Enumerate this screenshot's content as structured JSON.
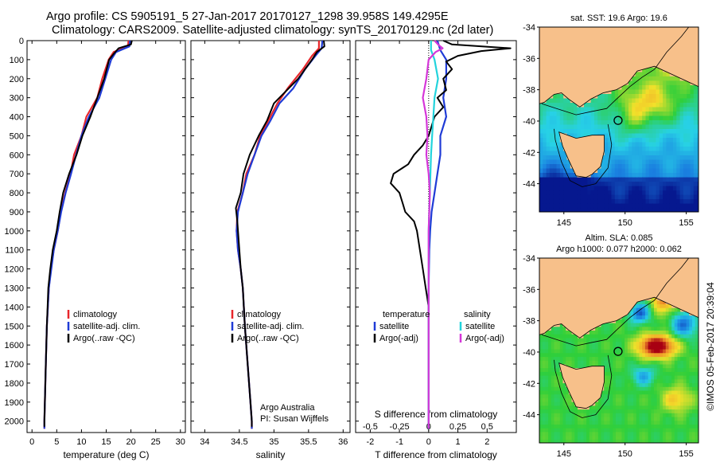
{
  "header": {
    "line1": "Argo profile: CS 5905191_5 27-Jan-2017 20170127_1298 39.958S 149.4295E",
    "line2": "Climatology: CARS2009. Satellite-adjusted climatology: synTS_20170129.nc (2d later)"
  },
  "chart_data": [
    {
      "type": "line",
      "panel": "temperature",
      "xlabel": "temperature (deg C)",
      "xlim": [
        -1,
        31
      ],
      "xticks": [
        0,
        5,
        10,
        15,
        20,
        25,
        30
      ],
      "ylim": [
        2060,
        0
      ],
      "yticks": [
        0,
        100,
        200,
        300,
        400,
        500,
        600,
        700,
        800,
        900,
        1000,
        1100,
        1200,
        1300,
        1400,
        1500,
        1600,
        1700,
        1800,
        1900,
        2000
      ],
      "legend": {
        "position": "lower-center",
        "entries": [
          "climatology",
          "satellite-adj. clim.",
          "Argo(..raw -QC)"
        ]
      },
      "series": [
        {
          "name": "climatology",
          "color": "#e8262b",
          "points": [
            [
              19.5,
              0
            ],
            [
              19.4,
              30
            ],
            [
              16.5,
              60
            ],
            [
              15.5,
              100
            ],
            [
              14.2,
              200
            ],
            [
              13.2,
              300
            ],
            [
              11.0,
              400
            ],
            [
              10.0,
              500
            ],
            [
              8.5,
              600
            ],
            [
              7.8,
              700
            ],
            [
              6.7,
              800
            ],
            [
              5.8,
              900
            ],
            [
              5.2,
              1000
            ],
            [
              4.4,
              1100
            ],
            [
              3.8,
              1200
            ],
            [
              3.4,
              1300
            ],
            [
              3.0,
              1500
            ],
            [
              2.8,
              1700
            ],
            [
              2.6,
              1900
            ],
            [
              2.5,
              2000
            ],
            [
              2.5,
              2040
            ]
          ]
        },
        {
          "name": "satellite-adj. clim.",
          "color": "#1f3bd6",
          "points": [
            [
              19.8,
              0
            ],
            [
              19.7,
              30
            ],
            [
              17.0,
              60
            ],
            [
              16.0,
              100
            ],
            [
              14.8,
              200
            ],
            [
              13.6,
              300
            ],
            [
              11.5,
              400
            ],
            [
              10.0,
              500
            ],
            [
              8.9,
              600
            ],
            [
              7.9,
              700
            ],
            [
              6.8,
              800
            ],
            [
              5.9,
              900
            ],
            [
              5.2,
              1000
            ],
            [
              4.4,
              1100
            ],
            [
              3.9,
              1200
            ],
            [
              3.4,
              1300
            ],
            [
              3.0,
              1500
            ],
            [
              2.8,
              1700
            ],
            [
              2.6,
              1900
            ],
            [
              2.5,
              2000
            ],
            [
              2.5,
              2040
            ]
          ]
        },
        {
          "name": "Argo(..raw -QC)",
          "color": "#000000",
          "points": [
            [
              20.2,
              0
            ],
            [
              20.0,
              20
            ],
            [
              17.5,
              40
            ],
            [
              16.5,
              70
            ],
            [
              15.6,
              100
            ],
            [
              14.6,
              200
            ],
            [
              13.2,
              300
            ],
            [
              11.8,
              400
            ],
            [
              10.2,
              500
            ],
            [
              9.0,
              600
            ],
            [
              7.5,
              700
            ],
            [
              6.3,
              800
            ],
            [
              5.6,
              900
            ],
            [
              5.0,
              1000
            ],
            [
              4.2,
              1100
            ],
            [
              3.7,
              1200
            ],
            [
              3.3,
              1300
            ],
            [
              3.0,
              1500
            ],
            [
              2.8,
              1700
            ],
            [
              2.6,
              1900
            ],
            [
              2.5,
              2000
            ],
            [
              2.5,
              2030
            ]
          ]
        }
      ]
    },
    {
      "type": "line",
      "panel": "salinity",
      "xlabel": "salinity",
      "xlim": [
        33.8,
        36.1
      ],
      "xticks": [
        34,
        34.5,
        35,
        35.5,
        36
      ],
      "ylim": [
        2060,
        0
      ],
      "legend": {
        "position": "lower-center",
        "entries": [
          "climatology",
          "satellite-adj. clim.",
          "Argo(..raw -QC)"
        ]
      },
      "annotation": [
        "Argo Australia",
        "PI: Susan Wijffels"
      ],
      "series": [
        {
          "name": "climatology",
          "color": "#e8262b",
          "points": [
            [
              35.65,
              0
            ],
            [
              35.65,
              40
            ],
            [
              35.55,
              80
            ],
            [
              35.42,
              150
            ],
            [
              35.2,
              250
            ],
            [
              35.05,
              330
            ],
            [
              34.92,
              420
            ],
            [
              34.8,
              500
            ],
            [
              34.72,
              600
            ],
            [
              34.6,
              700
            ],
            [
              34.55,
              800
            ],
            [
              34.47,
              900
            ],
            [
              34.46,
              1000
            ],
            [
              34.48,
              1100
            ],
            [
              34.52,
              1200
            ],
            [
              34.55,
              1300
            ],
            [
              34.58,
              1500
            ],
            [
              34.62,
              1700
            ],
            [
              34.66,
              1900
            ],
            [
              34.68,
              2000
            ],
            [
              34.68,
              2040
            ]
          ]
        },
        {
          "name": "satellite-adj. clim.",
          "color": "#1f3bd6",
          "points": [
            [
              35.7,
              0
            ],
            [
              35.69,
              40
            ],
            [
              35.6,
              80
            ],
            [
              35.45,
              150
            ],
            [
              35.28,
              250
            ],
            [
              35.08,
              330
            ],
            [
              34.95,
              420
            ],
            [
              34.82,
              500
            ],
            [
              34.72,
              600
            ],
            [
              34.62,
              700
            ],
            [
              34.55,
              800
            ],
            [
              34.48,
              900
            ],
            [
              34.46,
              1000
            ],
            [
              34.48,
              1100
            ],
            [
              34.52,
              1200
            ],
            [
              34.55,
              1300
            ],
            [
              34.58,
              1500
            ],
            [
              34.62,
              1700
            ],
            [
              34.66,
              1900
            ],
            [
              34.68,
              2000
            ],
            [
              34.68,
              2040
            ]
          ]
        },
        {
          "name": "Argo(..raw -QC)",
          "color": "#000000",
          "points": [
            [
              35.72,
              0
            ],
            [
              35.73,
              30
            ],
            [
              35.62,
              60
            ],
            [
              35.55,
              100
            ],
            [
              35.35,
              200
            ],
            [
              35.0,
              330
            ],
            [
              34.9,
              420
            ],
            [
              34.78,
              500
            ],
            [
              34.65,
              600
            ],
            [
              34.56,
              700
            ],
            [
              34.52,
              800
            ],
            [
              34.45,
              880
            ],
            [
              34.47,
              950
            ],
            [
              34.49,
              1050
            ],
            [
              34.52,
              1200
            ],
            [
              34.55,
              1300
            ],
            [
              34.58,
              1500
            ],
            [
              34.62,
              1700
            ],
            [
              34.66,
              1900
            ],
            [
              34.68,
              2000
            ],
            [
              34.68,
              2030
            ]
          ]
        }
      ]
    },
    {
      "type": "line",
      "panel": "differences",
      "xlabel": "T difference from climatology",
      "xlabel_top": "S difference from climatology",
      "xlim": [
        -2.5,
        3.0
      ],
      "xticks": [
        -2,
        -1,
        0,
        1,
        2
      ],
      "s_xticks": [
        -0.5,
        -0.25,
        0,
        0.25,
        0.5
      ],
      "s_per_t": 4,
      "ylim": [
        2060,
        0
      ],
      "legend": {
        "position": "lower-center",
        "titles": [
          "temperature",
          "salinity"
        ],
        "entries": [
          "satellite",
          "Argo(-adj)",
          "satellite",
          "Argo(-adj)"
        ]
      },
      "series": [
        {
          "name": "temperature satellite",
          "color": "#1f3bd6",
          "quantity": "T",
          "points": [
            [
              0.3,
              0
            ],
            [
              0.4,
              50
            ],
            [
              0.6,
              100
            ],
            [
              0.6,
              200
            ],
            [
              0.5,
              300
            ],
            [
              0.6,
              400
            ],
            [
              0.4,
              500
            ],
            [
              0.4,
              600
            ],
            [
              0.3,
              700
            ],
            [
              0.2,
              800
            ],
            [
              0.1,
              900
            ],
            [
              0.05,
              1000
            ],
            [
              0.02,
              1100
            ],
            [
              0.0,
              1300
            ],
            [
              0.0,
              2040
            ]
          ]
        },
        {
          "name": "temperature Argo(-adj)",
          "color": "#000000",
          "quantity": "T",
          "points": [
            [
              0.5,
              0
            ],
            [
              0.8,
              20
            ],
            [
              2.8,
              40
            ],
            [
              1.8,
              55
            ],
            [
              1.0,
              80
            ],
            [
              0.6,
              110
            ],
            [
              0.8,
              150
            ],
            [
              0.5,
              200
            ],
            [
              0.6,
              260
            ],
            [
              0.3,
              300
            ],
            [
              0.5,
              350
            ],
            [
              0.2,
              400
            ],
            [
              0.1,
              450
            ],
            [
              0.0,
              500
            ],
            [
              -0.2,
              550
            ],
            [
              -0.5,
              600
            ],
            [
              -0.7,
              650
            ],
            [
              -1.2,
              700
            ],
            [
              -1.3,
              750
            ],
            [
              -1.0,
              800
            ],
            [
              -0.9,
              850
            ],
            [
              -0.8,
              900
            ],
            [
              -0.5,
              950
            ],
            [
              -0.4,
              1000
            ],
            [
              -0.3,
              1100
            ],
            [
              -0.2,
              1200
            ],
            [
              -0.1,
              1300
            ],
            [
              -0.05,
              1350
            ],
            [
              0.0,
              1400
            ],
            [
              0.0,
              2030
            ]
          ]
        },
        {
          "name": "salinity satellite",
          "color": "#22d3dc",
          "quantity": "S",
          "points": [
            [
              0.02,
              0
            ],
            [
              0.02,
              50
            ],
            [
              0.05,
              100
            ],
            [
              0.08,
              200
            ],
            [
              0.05,
              300
            ],
            [
              0.04,
              400
            ],
            [
              0.03,
              500
            ],
            [
              0.02,
              600
            ],
            [
              0.01,
              800
            ],
            [
              0.0,
              1000
            ],
            [
              0.0,
              2040
            ]
          ]
        },
        {
          "name": "salinity Argo(-adj)",
          "color": "#d536d9",
          "quantity": "S",
          "points": [
            [
              0.05,
              0
            ],
            [
              0.08,
              20
            ],
            [
              0.12,
              40
            ],
            [
              0.06,
              60
            ],
            [
              0.0,
              100
            ],
            [
              -0.02,
              200
            ],
            [
              -0.05,
              300
            ],
            [
              -0.02,
              400
            ],
            [
              -0.01,
              500
            ],
            [
              -0.02,
              600
            ],
            [
              0.0,
              700
            ],
            [
              0.01,
              800
            ],
            [
              0.0,
              1000
            ],
            [
              0.0,
              2040
            ]
          ]
        }
      ]
    }
  ],
  "maps": [
    {
      "title": "sat. SST: 19.6  Argo: 19.6",
      "kind": "sst",
      "xlim": [
        143,
        156
      ],
      "ylim": [
        -45.8,
        -34
      ],
      "xticks": [
        145,
        150,
        155
      ],
      "yticks": [
        -34,
        -36,
        -38,
        -40,
        -42,
        -44
      ],
      "marker": {
        "lon": 149.43,
        "lat": -39.96
      }
    },
    {
      "title": "Altim. SLA: 0.085",
      "subtitle": "Argo h1000: 0.077  h2000: 0.062",
      "kind": "sla",
      "xlim": [
        143,
        156
      ],
      "ylim": [
        -45.8,
        -34
      ],
      "xticks": [
        145,
        150,
        155
      ],
      "yticks": [
        -34,
        -36,
        -38,
        -40,
        -42,
        -44
      ],
      "marker": {
        "lon": 149.43,
        "lat": -39.96
      }
    }
  ],
  "footer": {
    "credit": "©IMOS 05-Feb-2017 20:39:04"
  },
  "colors": {
    "land": "#f7c08a",
    "deep_blue": "#06188f",
    "mid_blue": "#1a7fe0",
    "cyan": "#27d1e6",
    "green": "#2fcf3a",
    "yellow": "#f2e12a",
    "orange": "#f0902a",
    "dark_red": "#a80012"
  }
}
